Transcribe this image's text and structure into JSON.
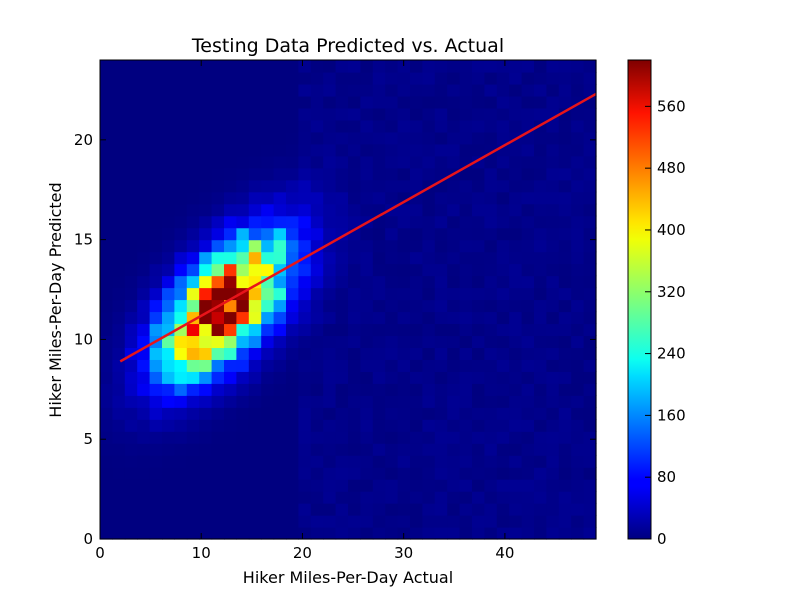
{
  "chart_data": {
    "type": "heatmap",
    "title": "Testing Data Predicted vs. Actual",
    "xlabel": "Hiker Miles-Per-Day Actual",
    "ylabel": "Hiker Miles-Per-Day Predicted",
    "xlim": [
      0,
      49
    ],
    "ylim": [
      0,
      24
    ],
    "x_ticks": [
      0,
      10,
      20,
      30,
      40
    ],
    "y_ticks": [
      0,
      5,
      10,
      15,
      20
    ],
    "colorbar": {
      "min": 0,
      "max": 620,
      "ticks": [
        0,
        80,
        160,
        240,
        320,
        400,
        480,
        560
      ],
      "colormap": "jet"
    },
    "histogram": {
      "bins_x": 40,
      "bins_y": 40,
      "peak_count": 610,
      "peak_center": [
        12.3,
        11.7
      ],
      "description_of_distribution": "2D histogram of predicted vs actual miles per day, dense cluster around actual ~12, predicted ~12"
    },
    "regression_line": {
      "color": "#e8141a",
      "points": [
        [
          2,
          8.9
        ],
        [
          49,
          22.3
        ]
      ]
    },
    "grid": false,
    "legend": "none"
  }
}
